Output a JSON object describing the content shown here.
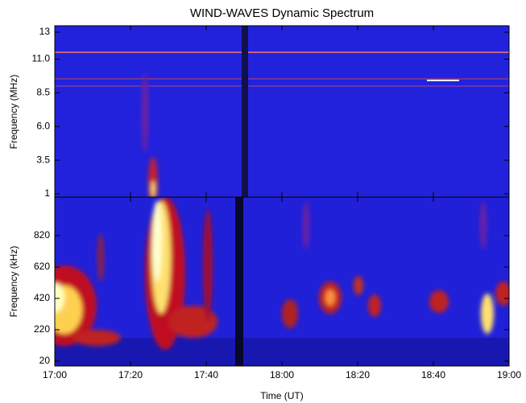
{
  "chart_data": [
    {
      "type": "heatmap",
      "title": "WIND-WAVES Dynamic Spectrum",
      "ylabel": "Frequency (MHz)",
      "ylim": [
        0.76,
        13.48
      ],
      "yticks": [
        1,
        3.5,
        {
          "value": 6,
          "label": "6.0"
        },
        8.5,
        {
          "value": 11,
          "label": "11.0"
        },
        13
      ]
    },
    {
      "type": "heatmap",
      "xlabel": "Time (UT)",
      "ylabel": "Frequency (kHz)",
      "xlim": [
        "17:00",
        "19:00"
      ],
      "xticks": [
        "17:00",
        "17:20",
        "17:40",
        "18:00",
        "18:20",
        "18:40",
        "19:00"
      ],
      "ylim": [
        -11,
        1066
      ],
      "yticks": [
        20,
        220,
        420,
        620,
        820
      ]
    }
  ]
}
